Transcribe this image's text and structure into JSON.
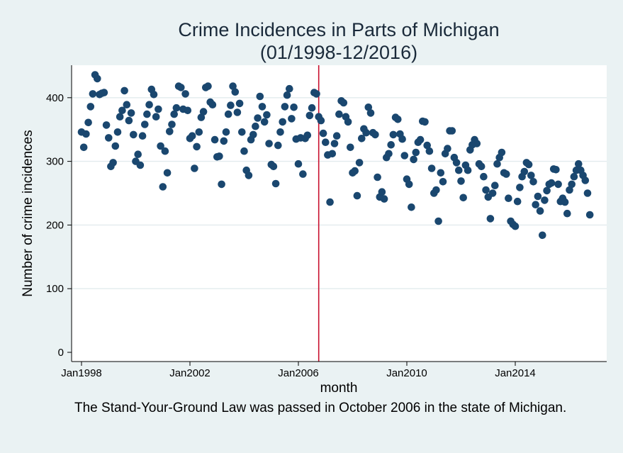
{
  "chart_data": {
    "type": "scatter",
    "title": "Crime Incidences in Parts of Michigan",
    "subtitle": "(01/1998-12/2016)",
    "xlabel": "month",
    "ylabel": "Number of crime incidences",
    "xlim": [
      "1998-01",
      "2016-12"
    ],
    "ylim": [
      0,
      450
    ],
    "yticks": [
      0,
      100,
      200,
      300,
      400
    ],
    "xticks": [
      {
        "label": "Jan1998",
        "month": "1998-01"
      },
      {
        "label": "Jan2002",
        "month": "2002-01"
      },
      {
        "label": "Jan2006",
        "month": "2006-01"
      },
      {
        "label": "Jan2010",
        "month": "2010-01"
      },
      {
        "label": "Jan2014",
        "month": "2014-01"
      }
    ],
    "grid": true,
    "reference_line": {
      "month": "2006-10",
      "color": "#c8102e"
    },
    "marker_color": "#1a476f",
    "start_month": "1998-01",
    "values": [
      346,
      322,
      343,
      361,
      386,
      406,
      436,
      430,
      405,
      407,
      408,
      357,
      337,
      292,
      298,
      324,
      346,
      370,
      380,
      411,
      389,
      364,
      376,
      342,
      300,
      311,
      294,
      340,
      358,
      374,
      389,
      413,
      405,
      370,
      382,
      324,
      260,
      316,
      282,
      347,
      358,
      374,
      384,
      418,
      416,
      382,
      406,
      380,
      336,
      340,
      289,
      323,
      346,
      369,
      378,
      416,
      418,
      393,
      389,
      334,
      307,
      308,
      264,
      332,
      346,
      374,
      388,
      418,
      409,
      377,
      391,
      346,
      316,
      286,
      278,
      334,
      342,
      355,
      368,
      402,
      386,
      362,
      373,
      328,
      295,
      292,
      265,
      325,
      346,
      362,
      386,
      404,
      414,
      367,
      385,
      335,
      296,
      337,
      280,
      336,
      341,
      372,
      384,
      408,
      406,
      370,
      364,
      344,
      330,
      310,
      236,
      312,
      328,
      340,
      374,
      395,
      392,
      370,
      362,
      322,
      282,
      285,
      246,
      298,
      336,
      351,
      345,
      385,
      376,
      345,
      342,
      275,
      244,
      252,
      241,
      306,
      312,
      326,
      342,
      369,
      366,
      343,
      335,
      309,
      272,
      264,
      228,
      303,
      314,
      330,
      334,
      363,
      362,
      325,
      316,
      289,
      250,
      255,
      206,
      282,
      268,
      312,
      320,
      348,
      348,
      306,
      298,
      286,
      269,
      243,
      294,
      286,
      318,
      326,
      334,
      328,
      296,
      292,
      276,
      255,
      244,
      210,
      250,
      262,
      296,
      306,
      314,
      282,
      280,
      242,
      206,
      201,
      198,
      237,
      259,
      276,
      284,
      298,
      295,
      278,
      268,
      232,
      245,
      222,
      184,
      239,
      254,
      264,
      266,
      288,
      287,
      264,
      237,
      242,
      236,
      218,
      255,
      264,
      276,
      286,
      296,
      286,
      278,
      270,
      250,
      216
    ]
  },
  "note": "The Stand-Your-Ground Law was passed in October 2006 in the state of Michigan."
}
